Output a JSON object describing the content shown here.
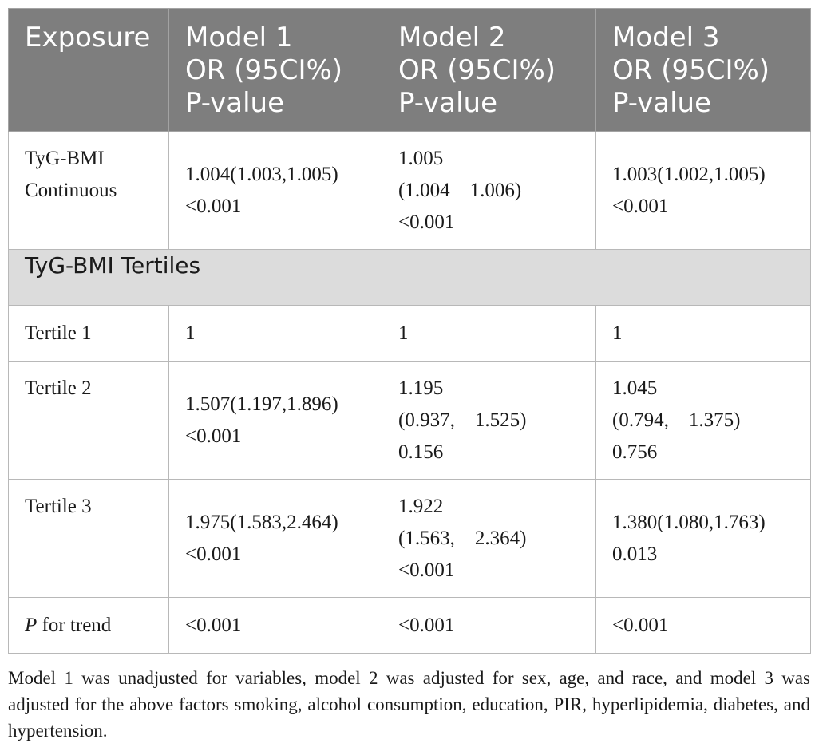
{
  "header": {
    "exposure": "Exposure",
    "model1": [
      "Model 1",
      "OR (95CI%)",
      "P-value"
    ],
    "model2": [
      "Model 2",
      "OR (95CI%)",
      "P-value"
    ],
    "model3": [
      "Model 3",
      "OR (95CI%)",
      "P-value"
    ]
  },
  "continuous": {
    "label": [
      "TyG-BMI",
      "Continuous"
    ],
    "m1": [
      "1.004(1.003,1.005)",
      "<0.001"
    ],
    "m2": [
      "1.005",
      "(1.004    1.006)",
      "<0.001"
    ],
    "m3": [
      "1.003(1.002,1.005)",
      "<0.001"
    ]
  },
  "section_title": "TyG-BMI Tertiles",
  "tertile1": {
    "label": "Tertile 1",
    "m1": "1",
    "m2": "1",
    "m3": "1"
  },
  "tertile2": {
    "label": "Tertile 2",
    "m1": [
      "1.507(1.197,1.896)",
      "<0.001"
    ],
    "m2": [
      "1.195",
      "(0.937,    1.525)",
      "0.156"
    ],
    "m3": [
      "1.045",
      "(0.794,    1.375)",
      "0.756"
    ]
  },
  "tertile3": {
    "label": "Tertile 3",
    "m1": [
      "1.975(1.583,2.464)",
      "<0.001"
    ],
    "m2": [
      "1.922",
      "(1.563,    2.364)",
      "<0.001"
    ],
    "m3": [
      "1.380(1.080,1.763)",
      "0.013"
    ]
  },
  "trend": {
    "label_italic": "P",
    "label_rest": " for trend",
    "m1": "<0.001",
    "m2": "<0.001",
    "m3": "<0.001"
  },
  "footnote": "Model 1 was unadjusted for variables, model 2 was adjusted for sex, age, and race, and model 3 was adjusted for the above factors smoking, alcohol consumption, education, PIR, hyperlipidemia, diabetes, and hypertension."
}
